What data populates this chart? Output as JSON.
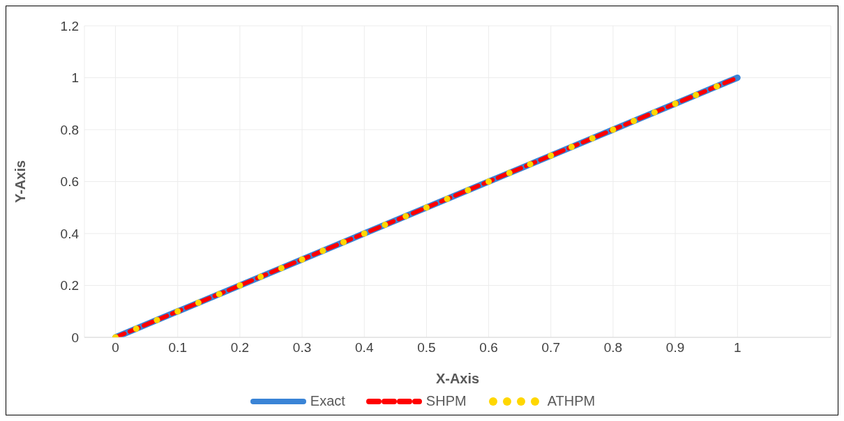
{
  "chart_data": {
    "type": "line",
    "xlabel": "X-Axis",
    "ylabel": "Y-Axis",
    "xlim": [
      -0.05,
      1.15
    ],
    "ylim": [
      0,
      1.2
    ],
    "xticks": [
      0,
      0.1,
      0.2,
      0.3,
      0.4,
      0.5,
      0.6,
      0.7,
      0.8,
      0.9,
      1
    ],
    "yticks": [
      0,
      0.2,
      0.4,
      0.6,
      0.8,
      1,
      1.2
    ],
    "grid": true,
    "legend": "bottom",
    "series": [
      {
        "name": "Exact",
        "color": "#3a84d6",
        "line_style": "solid",
        "marker": "none",
        "x": [
          0,
          1
        ],
        "values": [
          0,
          1
        ]
      },
      {
        "name": "SHPM",
        "color": "#ff0000",
        "line_style": "dashed",
        "marker": "none",
        "x": [
          0,
          1
        ],
        "values": [
          0,
          1
        ]
      },
      {
        "name": "ATHPM",
        "type": "scatter",
        "color": "#ffd700",
        "marker": "circle",
        "x": [
          0,
          0.0333,
          0.0667,
          0.1,
          0.1333,
          0.1667,
          0.2,
          0.2333,
          0.2667,
          0.3,
          0.3333,
          0.3667,
          0.4,
          0.4333,
          0.4667,
          0.5,
          0.5333,
          0.5667,
          0.6,
          0.6333,
          0.6667,
          0.7,
          0.7333,
          0.7667,
          0.8,
          0.8333,
          0.8667,
          0.9,
          0.9333,
          0.9667
        ],
        "values": [
          0,
          0.0333,
          0.0667,
          0.1,
          0.1333,
          0.1667,
          0.2,
          0.2333,
          0.2667,
          0.3,
          0.3333,
          0.3667,
          0.4,
          0.4333,
          0.4667,
          0.5,
          0.5333,
          0.5667,
          0.6,
          0.6333,
          0.6667,
          0.7,
          0.7333,
          0.7667,
          0.8,
          0.8333,
          0.8667,
          0.9,
          0.9333,
          0.9667
        ]
      }
    ]
  }
}
